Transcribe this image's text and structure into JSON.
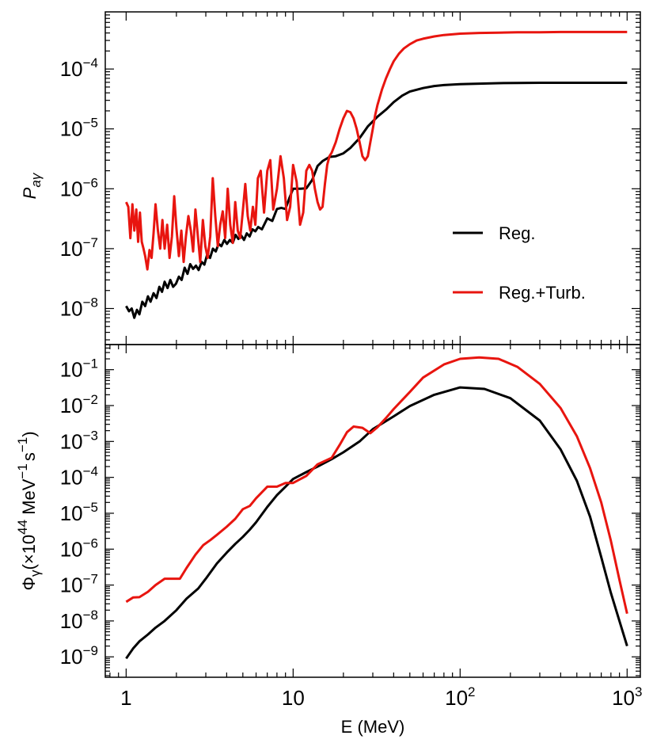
{
  "chart_data": [
    {
      "type": "line",
      "panel": "top",
      "ylabel": "P_aγ",
      "ylabel_main": "P",
      "ylabel_sub": "aγ",
      "xscale": "log",
      "yscale": "log",
      "xlim": [
        0.75,
        1200
      ],
      "ylim": [
        2.5e-09,
        0.0009
      ],
      "legend_position": "center-right",
      "yticks": [
        {
          "base": "10",
          "exp": "−8"
        },
        {
          "base": "10",
          "exp": "−7"
        },
        {
          "base": "10",
          "exp": "−6"
        },
        {
          "base": "10",
          "exp": "−5"
        },
        {
          "base": "10",
          "exp": "−4"
        }
      ],
      "series": [
        {
          "name": "Reg.",
          "color": "#000000",
          "x": [
            1.0,
            1.04,
            1.08,
            1.12,
            1.16,
            1.2,
            1.25,
            1.3,
            1.35,
            1.4,
            1.46,
            1.52,
            1.58,
            1.64,
            1.7,
            1.77,
            1.84,
            1.91,
            1.99,
            2.07,
            2.15,
            2.24,
            2.33,
            2.42,
            2.52,
            2.62,
            2.72,
            2.83,
            2.94,
            3.06,
            3.18,
            3.31,
            3.44,
            3.58,
            3.72,
            3.87,
            4.02,
            4.18,
            4.35,
            4.52,
            4.7,
            4.89,
            5.08,
            5.28,
            5.49,
            5.71,
            5.94,
            6.18,
            6.5,
            7.0,
            7.5,
            8.0,
            8.5,
            9.0,
            9.5,
            10.0,
            11.0,
            12.0,
            13.0,
            14.0,
            15.0,
            16.5,
            18.0,
            20.0,
            22.0,
            25.0,
            28.0,
            32.0,
            36.0,
            40.0,
            45.0,
            50.0,
            60.0,
            70.0,
            80.0,
            100.0,
            130.0,
            170.0,
            220.0,
            300.0,
            400.0,
            600.0,
            1000.0
          ],
          "y": [
            1.1e-08,
            9e-09,
            1e-08,
            7e-09,
            9.5e-09,
            8e-09,
            1.3e-08,
            1.1e-08,
            1.6e-08,
            1.3e-08,
            1.8e-08,
            1.5e-08,
            2.3e-08,
            1.9e-08,
            2.8e-08,
            2.2e-08,
            3e-08,
            2.3e-08,
            2.6e-08,
            3.4e-08,
            3e-08,
            4.8e-08,
            3.8e-08,
            5.5e-08,
            4.6e-08,
            5.2e-08,
            4.4e-08,
            6e-08,
            5.4e-08,
            8e-08,
            7e-08,
            1e-07,
            9e-08,
            1.2e-07,
            1.1e-07,
            1.4e-07,
            1.2e-07,
            1.4e-07,
            1.25e-07,
            1.7e-07,
            1.45e-07,
            1.65e-07,
            1.4e-07,
            1.8e-07,
            1.6e-07,
            2.1e-07,
            1.95e-07,
            2.3e-07,
            2.1e-07,
            3.2e-07,
            2.9e-07,
            4.6e-07,
            4.8e-07,
            4.6e-07,
            7e-07,
            1e-06,
            1e-06,
            1.02e-06,
            1.4e-06,
            2.4e-06,
            2.9e-06,
            3.4e-06,
            3.5e-06,
            3.9e-06,
            4.8e-06,
            7e-06,
            1.1e-05,
            1.6e-05,
            2.1e-05,
            2.8e-05,
            3.6e-05,
            4.2e-05,
            4.8e-05,
            5.2e-05,
            5.4e-05,
            5.6e-05,
            5.7e-05,
            5.8e-05,
            5.85e-05,
            5.9e-05,
            5.9e-05,
            5.9e-05,
            5.9e-05
          ]
        },
        {
          "name": "Reg.+Turb.",
          "color": "#e8150f",
          "x": [
            1.0,
            1.03,
            1.06,
            1.09,
            1.12,
            1.15,
            1.18,
            1.21,
            1.24,
            1.27,
            1.3,
            1.34,
            1.38,
            1.42,
            1.46,
            1.5,
            1.55,
            1.6,
            1.65,
            1.7,
            1.76,
            1.82,
            1.88,
            1.94,
            2.0,
            2.07,
            2.14,
            2.21,
            2.28,
            2.36,
            2.44,
            2.52,
            2.6,
            2.69,
            2.78,
            2.88,
            2.98,
            3.08,
            3.19,
            3.3,
            3.42,
            3.54,
            3.66,
            3.79,
            3.92,
            4.06,
            4.2,
            4.35,
            4.5,
            4.66,
            4.82,
            4.99,
            5.17,
            5.35,
            5.54,
            5.74,
            5.94,
            6.15,
            6.4,
            6.7,
            7.0,
            7.3,
            7.6,
            8.0,
            8.4,
            8.8,
            9.2,
            9.6,
            10.0,
            10.5,
            11.0,
            11.5,
            12.0,
            12.5,
            13.0,
            13.5,
            14.0,
            14.5,
            15.0,
            15.5,
            16.0,
            16.5,
            17.0,
            18.0,
            19.0,
            20.0,
            21.0,
            22.0,
            23.0,
            24.0,
            25.0,
            26.0,
            27.0,
            28.0,
            29.0,
            30.0,
            31.0,
            32.0,
            34.0,
            36.0,
            38.0,
            40.0,
            43.0,
            46.0,
            50.0,
            55.0,
            60.0,
            70.0,
            80.0,
            100.0,
            130.0,
            170.0,
            220.0,
            300.0,
            400.0,
            600.0,
            1000.0
          ],
          "y": [
            6e-07,
            5e-07,
            1.5e-07,
            5.5e-07,
            2e-07,
            4.5e-07,
            1.3e-07,
            4e-07,
            1.3e-07,
            1e-07,
            7.5e-08,
            4.5e-08,
            9.5e-08,
            7e-08,
            1.8e-07,
            5.5e-07,
            2e-07,
            1e-07,
            3e-07,
            1e-07,
            2.5e-07,
            7e-08,
            1.6e-07,
            7.5e-07,
            2.2e-07,
            7.5e-08,
            2e-07,
            6e-08,
            1.6e-07,
            3.5e-07,
            2e-07,
            9e-08,
            4.5e-07,
            1.6e-07,
            6e-08,
            3e-07,
            1.1e-07,
            7e-08,
            1.6e-07,
            1.5e-06,
            3.5e-07,
            1.1e-07,
            2.5e-07,
            4.2e-07,
            1.5e-07,
            1e-06,
            2.5e-07,
            1.25e-07,
            6e-07,
            2e-07,
            1.5e-07,
            4e-07,
            1.2e-06,
            3.5e-07,
            2e-07,
            5e-07,
            2.5e-07,
            1.5e-06,
            2e-06,
            4e-07,
            2e-06,
            3e-06,
            4.5e-07,
            1e-06,
            3.5e-06,
            1.5e-06,
            3e-07,
            5e-07,
            2.5e-06,
            1.3e-06,
            2.5e-07,
            4e-07,
            2e-06,
            2.5e-06,
            2e-06,
            1e-06,
            6e-07,
            4.5e-07,
            5e-07,
            1.2e-06,
            2.5e-06,
            3.5e-06,
            4e-06,
            6e-06,
            1e-05,
            1.5e-05,
            2e-05,
            1.9e-05,
            1.5e-05,
            1e-05,
            6e-06,
            3.5e-06,
            3e-06,
            3.5e-06,
            6e-06,
            1e-05,
            1.7e-05,
            2.5e-05,
            4.5e-05,
            7e-05,
            0.0001,
            0.000135,
            0.00018,
            0.00022,
            0.00026,
            0.0003,
            0.00032,
            0.00035,
            0.00037,
            0.00039,
            0.0004,
            0.000405,
            0.00041,
            0.00041,
            0.000415,
            0.000415,
            0.000415
          ]
        }
      ]
    },
    {
      "type": "line",
      "panel": "bottom",
      "ylabel": "Φγ(×10^44 MeV^−1 s^−1)",
      "ylabel_parts": [
        "Φ",
        "γ",
        "(×10",
        "44",
        " MeV",
        "−1",
        "s",
        "−1",
        ")"
      ],
      "xlabel": "E (MeV)",
      "xscale": "log",
      "yscale": "log",
      "xlim": [
        0.75,
        1200
      ],
      "ylim": [
        2.7e-10,
        0.5
      ],
      "xticks": [
        {
          "base": "1",
          "exp": ""
        },
        {
          "base": "10",
          "exp": ""
        },
        {
          "base": "10",
          "exp": "2"
        },
        {
          "base": "10",
          "exp": "3"
        }
      ],
      "yticks": [
        {
          "base": "10",
          "exp": "−9"
        },
        {
          "base": "10",
          "exp": "−8"
        },
        {
          "base": "10",
          "exp": "−7"
        },
        {
          "base": "10",
          "exp": "−6"
        },
        {
          "base": "10",
          "exp": "−5"
        },
        {
          "base": "10",
          "exp": "−4"
        },
        {
          "base": "10",
          "exp": "−3"
        },
        {
          "base": "10",
          "exp": "−2"
        },
        {
          "base": "10",
          "exp": "−1"
        }
      ],
      "series": [
        {
          "name": "Reg.",
          "color": "#000000",
          "x": [
            1.0,
            1.1,
            1.2,
            1.35,
            1.5,
            1.7,
            2.0,
            2.3,
            2.7,
            3.0,
            3.5,
            4.0,
            4.5,
            5.0,
            5.5,
            6.0,
            7.0,
            8.0,
            9.0,
            10.0,
            12.0,
            14.0,
            17.0,
            20.0,
            25.0,
            30.0,
            40.0,
            50.0,
            70.0,
            100.0,
            140.0,
            200.0,
            300.0,
            400.0,
            500.0,
            600.0,
            700.0,
            800.0,
            900.0,
            1000.0
          ],
          "y": [
            9e-10,
            1.7e-09,
            2.7e-09,
            4.2e-09,
            6.5e-09,
            1e-08,
            2e-08,
            4.2e-08,
            8e-08,
            1.5e-07,
            4e-07,
            8e-07,
            1.4e-06,
            2.2e-06,
            3.5e-06,
            5.6e-06,
            1.5e-05,
            3.2e-05,
            5.5e-05,
            9e-05,
            0.00014,
            0.0002,
            0.00032,
            0.0005,
            0.001,
            0.0022,
            0.005,
            0.0097,
            0.02,
            0.032,
            0.029,
            0.016,
            0.0038,
            0.0006,
            8e-05,
            8e-06,
            6e-07,
            6e-08,
            1e-08,
            2e-09
          ]
        },
        {
          "name": "Reg.+Turb.",
          "color": "#e8150f",
          "x": [
            1.0,
            1.1,
            1.2,
            1.35,
            1.5,
            1.7,
            1.9,
            2.1,
            2.3,
            2.6,
            2.9,
            3.2,
            3.5,
            4.0,
            4.5,
            5.0,
            5.5,
            6.0,
            7.0,
            8.0,
            9.0,
            10.0,
            12.0,
            14.0,
            17.0,
            19.0,
            21.0,
            23.0,
            26.0,
            29.0,
            32.0,
            36.0,
            40.0,
            50.0,
            60.0,
            80.0,
            100.0,
            130.0,
            170.0,
            220.0,
            300.0,
            400.0,
            500.0,
            600.0,
            700.0,
            800.0,
            900.0,
            1000.0
          ],
          "y": [
            3.4e-08,
            4.5e-08,
            4.6e-08,
            6.5e-08,
            1e-07,
            1.5e-07,
            1.5e-07,
            1.5e-07,
            3e-07,
            7e-07,
            1.3e-06,
            1.8e-06,
            2.5e-06,
            4.2e-06,
            7e-06,
            1.3e-05,
            1.6e-05,
            2.6e-05,
            5.5e-05,
            5.5e-05,
            7e-05,
            7e-05,
            0.00011,
            0.00023,
            0.00035,
            0.0008,
            0.0018,
            0.0026,
            0.0024,
            0.0017,
            0.0025,
            0.0045,
            0.008,
            0.024,
            0.06,
            0.14,
            0.2,
            0.22,
            0.2,
            0.12,
            0.04,
            0.0085,
            0.0014,
            0.00018,
            2e-05,
            1.7e-06,
            1.4e-07,
            1.6e-08
          ]
        }
      ]
    }
  ]
}
